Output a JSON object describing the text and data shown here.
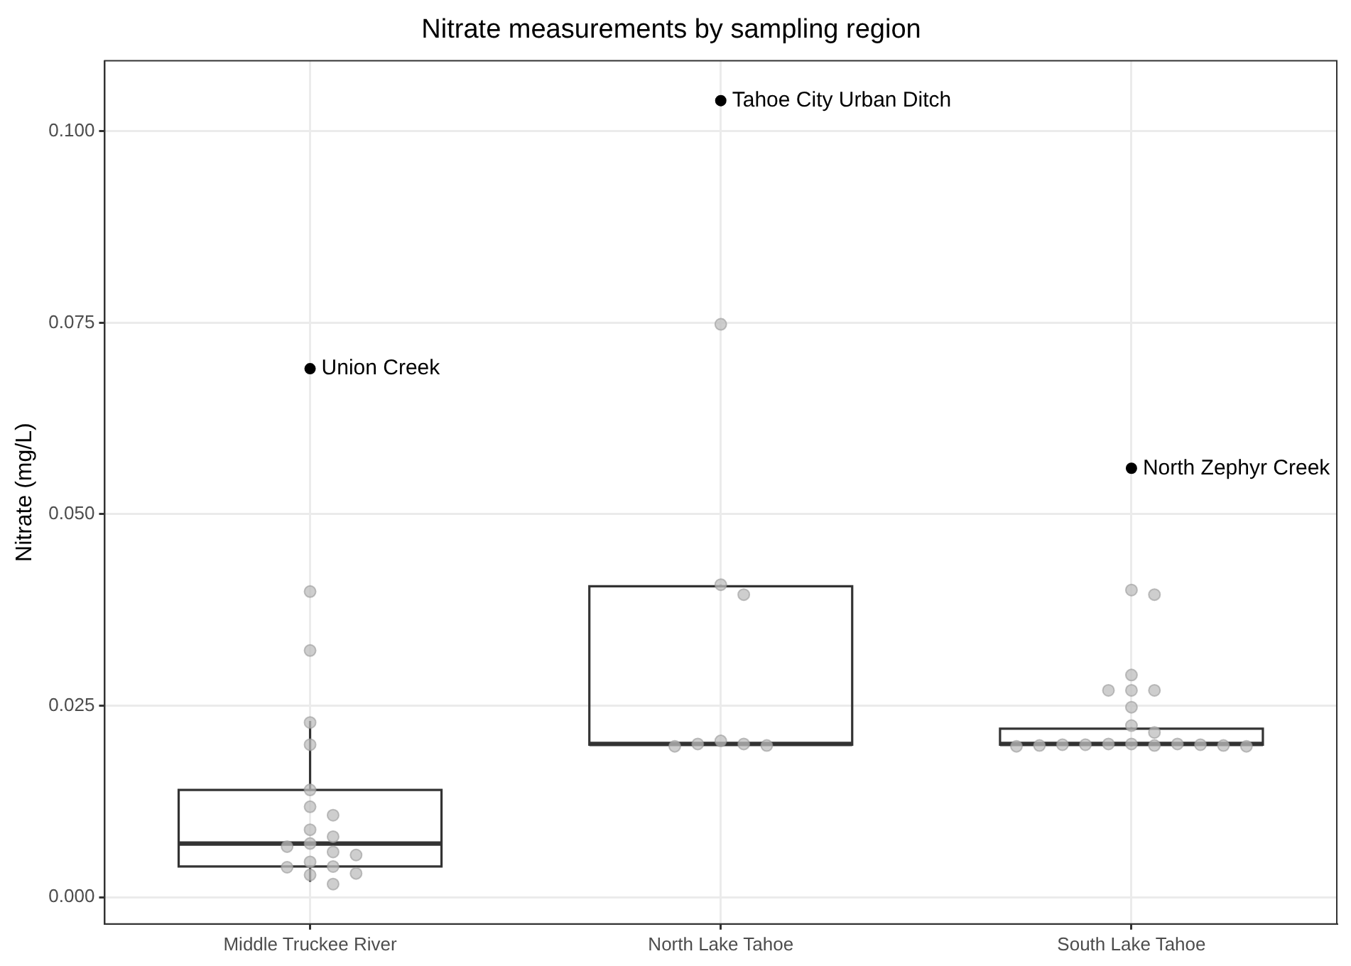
{
  "chart_data": {
    "type": "box",
    "title": "Nitrate measurements by sampling region",
    "ylabel": "Nitrate (mg/L)",
    "categories": [
      "Middle Truckee River",
      "North Lake Tahoe",
      "South Lake Tahoe"
    ],
    "ylim": [
      -0.0035,
      0.1092
    ],
    "yticks": [
      {
        "value": 0,
        "label": "0.000"
      },
      {
        "value": 0.025,
        "label": "0.025"
      },
      {
        "value": 0.05,
        "label": "0.050"
      },
      {
        "value": 0.075,
        "label": "0.075"
      },
      {
        "value": 0.1,
        "label": "0.100"
      }
    ],
    "grid": true,
    "series": [
      {
        "type": "box",
        "color": "#333333",
        "boxes": [
          {
            "low": 0.002,
            "q1": 0.004,
            "median": 0.007,
            "q3": 0.014,
            "high": 0.023
          },
          {
            "low": 0.0197,
            "q1": 0.0199,
            "median": 0.02,
            "q3": 0.0406,
            "high": 0.0408
          },
          {
            "low": 0.0197,
            "q1": 0.0199,
            "median": 0.02,
            "q3": 0.022,
            "high": 0.0222
          }
        ]
      },
      {
        "type": "scatter",
        "color": "#bdbdbd",
        "x": [
          "Middle Truckee River",
          "Middle Truckee River",
          "Middle Truckee River",
          "Middle Truckee River",
          "Middle Truckee River",
          "Middle Truckee River",
          "Middle Truckee River",
          "Middle Truckee River",
          "Middle Truckee River",
          "Middle Truckee River",
          "Middle Truckee River",
          "Middle Truckee River",
          "Middle Truckee River",
          "Middle Truckee River",
          "Middle Truckee River",
          "Middle Truckee River",
          "Middle Truckee River",
          "Middle Truckee River",
          "Middle Truckee River",
          "North Lake Tahoe",
          "North Lake Tahoe",
          "North Lake Tahoe",
          "North Lake Tahoe",
          "North Lake Tahoe",
          "North Lake Tahoe",
          "North Lake Tahoe",
          "North Lake Tahoe",
          "South Lake Tahoe",
          "South Lake Tahoe",
          "South Lake Tahoe",
          "South Lake Tahoe",
          "South Lake Tahoe",
          "South Lake Tahoe",
          "South Lake Tahoe",
          "South Lake Tahoe",
          "South Lake Tahoe",
          "South Lake Tahoe",
          "South Lake Tahoe",
          "South Lake Tahoe",
          "South Lake Tahoe",
          "South Lake Tahoe",
          "South Lake Tahoe",
          "South Lake Tahoe",
          "South Lake Tahoe",
          "South Lake Tahoe",
          "South Lake Tahoe",
          "South Lake Tahoe"
        ],
        "values": [
          0.0399,
          0.0322,
          0.0228,
          0.0199,
          0.014,
          0.0118,
          0.0107,
          0.0088,
          0.0079,
          0.007,
          0.0066,
          0.0059,
          0.0055,
          0.0046,
          0.004,
          0.0039,
          0.0031,
          0.0029,
          0.0017,
          0.0748,
          0.0408,
          0.0395,
          0.0204,
          0.02,
          0.02,
          0.0198,
          0.0197,
          0.0401,
          0.0395,
          0.029,
          0.027,
          0.027,
          0.027,
          0.0248,
          0.0224,
          0.0215,
          0.02,
          0.02,
          0.02,
          0.0199,
          0.0199,
          0.0199,
          0.0198,
          0.0198,
          0.0198,
          0.0197,
          0.0197
        ]
      },
      {
        "type": "scatter",
        "color": "#000000",
        "x": [
          "Middle Truckee River",
          "North Lake Tahoe",
          "South Lake Tahoe"
        ],
        "values": [
          0.069,
          0.104,
          0.056
        ]
      }
    ],
    "annotations": [
      {
        "text": "Union Creek",
        "x": "Middle Truckee River",
        "y": 0.069
      },
      {
        "text": "Tahoe City Urban Ditch",
        "x": "North Lake Tahoe",
        "y": 0.104
      },
      {
        "text": "North Zephyr Creek",
        "x": "South Lake Tahoe",
        "y": 0.056
      }
    ]
  }
}
